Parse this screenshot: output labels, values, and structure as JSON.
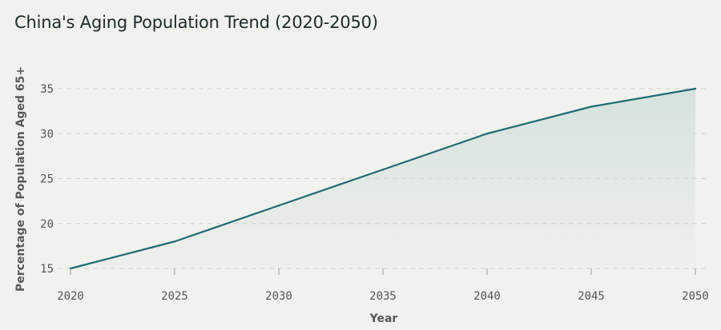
{
  "title": "China's Aging Population Trend (2020-2050)",
  "chart_data": {
    "type": "area",
    "title": "China's Aging Population Trend (2020-2050)",
    "xlabel": "Year",
    "ylabel": "Percentage of Population Aged 65+",
    "x": [
      2020,
      2025,
      2030,
      2035,
      2040,
      2045,
      2050
    ],
    "y": [
      15,
      18,
      22,
      26,
      30,
      33,
      35
    ],
    "x_ticks": [
      2020,
      2025,
      2030,
      2035,
      2040,
      2045,
      2050
    ],
    "y_ticks": [
      15,
      20,
      25,
      30,
      35
    ],
    "xlim": [
      2020,
      2050
    ],
    "ylim": [
      15,
      35
    ],
    "grid": "horizontal-dashed",
    "legend": "none",
    "colors": {
      "line": "#1f6b75",
      "fill": "#d4e1de",
      "grid": "#d2d2cc",
      "background": "#f1f1ed"
    }
  }
}
